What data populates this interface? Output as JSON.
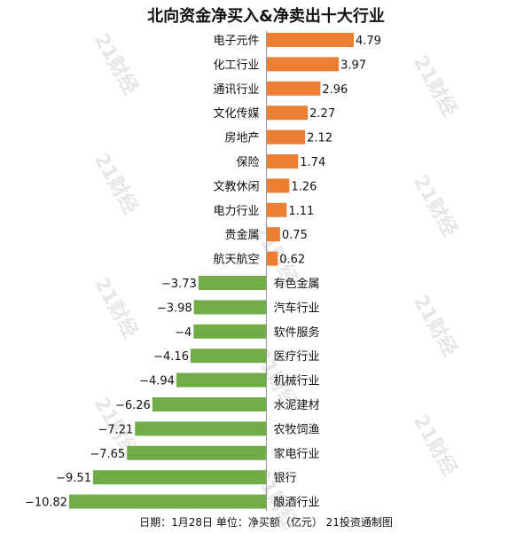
{
  "chart_data": {
    "type": "bar",
    "orientation": "horizontal",
    "title": "北向资金净买入&净卖出十大行业",
    "footer": "日期：1月28日 单位：净买额（亿元） 21投资通制图",
    "xlabel": "",
    "ylabel": "",
    "xlim": [
      -10.82,
      4.79
    ],
    "grid": false,
    "categories": [
      "电子元件",
      "化工行业",
      "通讯行业",
      "文化传媒",
      "房地产",
      "保险",
      "文教休闲",
      "电力行业",
      "贵金属",
      "航天航空",
      "有色金属",
      "汽车行业",
      "软件服务",
      "医疗行业",
      "机械行业",
      "水泥建材",
      "农牧饲渔",
      "家电行业",
      "银行",
      "酿酒行业"
    ],
    "values": [
      4.79,
      3.97,
      2.96,
      2.27,
      2.12,
      1.74,
      1.26,
      1.11,
      0.75,
      0.62,
      -3.73,
      -3.98,
      -4,
      -4.16,
      -4.94,
      -6.26,
      -7.21,
      -7.65,
      -9.51,
      -10.82
    ],
    "value_labels": [
      "4.79",
      "3.97",
      "2.96",
      "2.27",
      "2.12",
      "1.74",
      "1.26",
      "1.11",
      "0.75",
      "0.62",
      "−3.73",
      "−3.98",
      "−4",
      "−4.16",
      "−4.94",
      "−6.26",
      "−7.21",
      "−7.65",
      "−9.51",
      "−10.82"
    ],
    "colors": {
      "positive": "#ec7f33",
      "negative": "#70ad47",
      "axis": "#999999"
    }
  },
  "watermark": "21财经"
}
